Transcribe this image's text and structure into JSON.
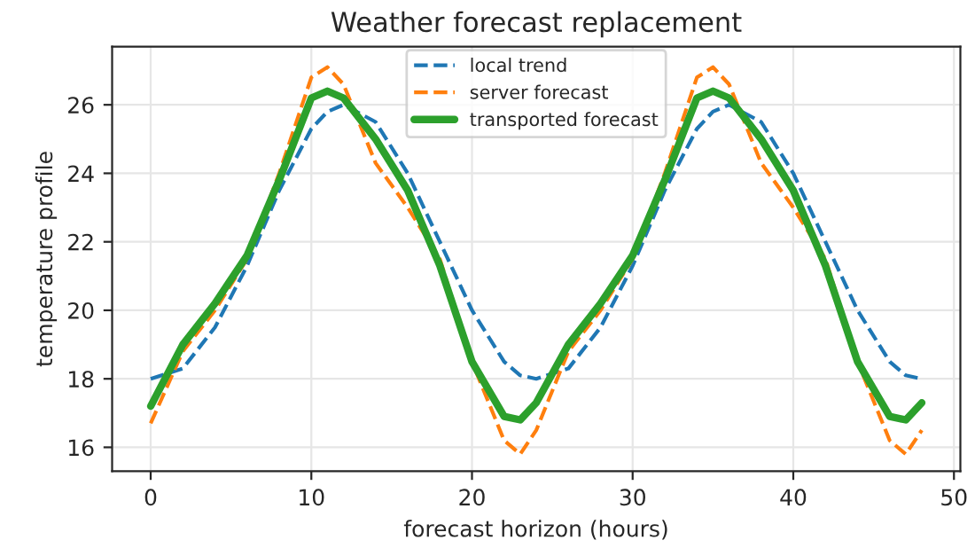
{
  "chart_data": {
    "type": "line",
    "title": "Weather forecast replacement",
    "xlabel": "forecast horizon (hours)",
    "ylabel": "temperature profile",
    "x": [
      0,
      2,
      4,
      6,
      8,
      10,
      11,
      12,
      14,
      16,
      18,
      20,
      22,
      23,
      24,
      26,
      28,
      30,
      32,
      34,
      35,
      36,
      38,
      40,
      42,
      44,
      46,
      47,
      48
    ],
    "series": [
      {
        "name": "local trend",
        "color": "#1f77b4",
        "line_style": "dashed",
        "values": [
          18,
          18.3,
          19.5,
          21.3,
          23.5,
          25.3,
          25.8,
          26,
          25.5,
          24,
          22,
          20,
          18.5,
          18.1,
          18,
          18.3,
          19.5,
          21.3,
          23.5,
          25.3,
          25.8,
          26,
          25.5,
          24,
          22,
          20,
          18.5,
          18.1,
          18
        ]
      },
      {
        "name": "server forecast",
        "color": "#ff7f0e",
        "line_style": "dashed",
        "values": [
          16.7,
          18.8,
          20,
          21.5,
          24,
          26.8,
          27.1,
          26.6,
          24.3,
          23,
          21.5,
          18.5,
          16.2,
          15.8,
          16.5,
          18.8,
          20,
          21.5,
          24,
          26.8,
          27.1,
          26.6,
          24.3,
          23,
          21.5,
          18.5,
          16.2,
          15.8,
          16.5
        ]
      },
      {
        "name": "transported forecast",
        "color": "#2ca02c",
        "line_style": "solid",
        "values": [
          17.2,
          19,
          20.2,
          21.6,
          23.8,
          26.2,
          26.4,
          26.2,
          25,
          23.5,
          21.3,
          18.5,
          16.9,
          16.8,
          17.3,
          19,
          20.2,
          21.6,
          23.8,
          26.2,
          26.4,
          26.2,
          25,
          23.5,
          21.3,
          18.5,
          16.9,
          16.8,
          17.3
        ]
      }
    ],
    "xlim": [
      -2.4,
      50.4
    ],
    "xticks": [
      0,
      10,
      20,
      30,
      40,
      50
    ],
    "ylim": [
      15.3,
      27.7
    ],
    "yticks": [
      16,
      18,
      20,
      22,
      24,
      26
    ],
    "grid": true,
    "legend": "top center"
  }
}
